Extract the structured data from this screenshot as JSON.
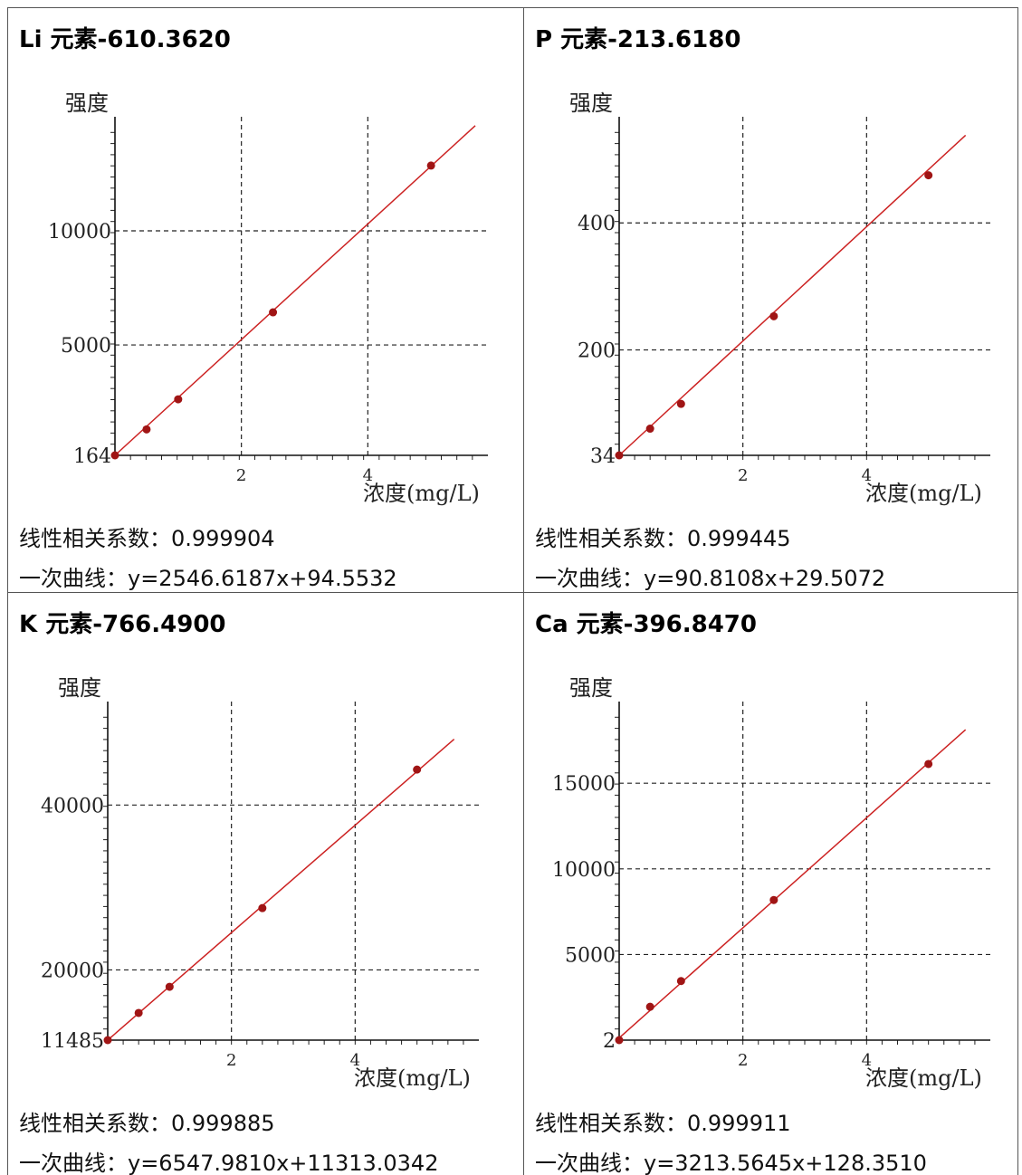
{
  "panels": [
    {
      "title": "Li 元素-610.3620",
      "correlation_label": "线性相关系数：0.999904",
      "curve_label": "一次曲线：y=2546.6187x+94.5532"
    },
    {
      "title": "P 元素-213.6180",
      "correlation_label": "线性相关系数：0.999445",
      "curve_label": "一次曲线：y=90.8108x+29.5072"
    },
    {
      "title": "K 元素-766.4900",
      "correlation_label": "线性相关系数：0.999885",
      "curve_label": "一次曲线：y=6547.9810x+11313.0342"
    },
    {
      "title": "Ca 元素-396.8470",
      "correlation_label": "线性相关系数：0.999911",
      "curve_label": "一次曲线：y=3213.5645x+128.3510"
    }
  ],
  "chart_data": [
    {
      "type": "scatter",
      "title": "Li 元素-610.3620",
      "xlabel": "浓度(mg/L)",
      "ylabel": "强度",
      "xlim": [
        0,
        5.9
      ],
      "ylim": [
        164,
        14800
      ],
      "x_ticks": [
        2,
        4
      ],
      "y_ticks": [
        164,
        5000,
        10000
      ],
      "y_tick_labels": [
        "164",
        "5000",
        "10000"
      ],
      "grid": true,
      "points": [
        [
          0,
          164
        ],
        [
          0.5,
          1300
        ],
        [
          1,
          2620
        ],
        [
          2.5,
          6430
        ],
        [
          5,
          12860
        ]
      ],
      "fit": {
        "slope": 2546.6187,
        "intercept": 94.5532
      },
      "fit_range": [
        0,
        5.7
      ],
      "color": "#cc2222"
    },
    {
      "type": "scatter",
      "title": "P 元素-213.6180",
      "xlabel": "浓度(mg/L)",
      "ylabel": "强度",
      "xlim": [
        0,
        6
      ],
      "ylim": [
        34,
        560
      ],
      "x_ticks": [
        2,
        4
      ],
      "y_ticks": [
        34,
        200,
        400
      ],
      "y_tick_labels": [
        "34",
        "200",
        "400"
      ],
      "grid": true,
      "points": [
        [
          0,
          34
        ],
        [
          0.5,
          76
        ],
        [
          1,
          115
        ],
        [
          2.5,
          253
        ],
        [
          5,
          475
        ]
      ],
      "fit": {
        "slope": 90.8108,
        "intercept": 29.5072
      },
      "fit_range": [
        0,
        5.6
      ],
      "color": "#cc2222"
    },
    {
      "type": "scatter",
      "title": "K 元素-766.4900",
      "xlabel": "浓度(mg/L)",
      "ylabel": "强度",
      "xlim": [
        0,
        6
      ],
      "ylim": [
        11485,
        52000
      ],
      "x_ticks": [
        2,
        4
      ],
      "y_ticks": [
        11485,
        20000,
        40000
      ],
      "y_tick_labels": [
        "11485",
        "20000",
        "40000"
      ],
      "grid": true,
      "points": [
        [
          0,
          11485
        ],
        [
          0.5,
          14780
        ],
        [
          1,
          17950
        ],
        [
          2.5,
          27500
        ],
        [
          5,
          44300
        ]
      ],
      "fit": {
        "slope": 6547.981,
        "intercept": 11313.0342
      },
      "fit_range": [
        0,
        5.6
      ],
      "color": "#cc2222"
    },
    {
      "type": "scatter",
      "title": "Ca 元素-396.8470",
      "xlabel": "浓度(mg/L)",
      "ylabel": "强度",
      "xlim": [
        0,
        6
      ],
      "ylim": [
        2,
        19500
      ],
      "x_ticks": [
        2,
        4
      ],
      "y_ticks": [
        2,
        5000,
        10000,
        15000
      ],
      "y_tick_labels": [
        "2",
        "5000",
        "10000",
        "15000"
      ],
      "grid": true,
      "points": [
        [
          0,
          2
        ],
        [
          0.5,
          1950
        ],
        [
          1,
          3450
        ],
        [
          2.5,
          8180
        ],
        [
          5,
          16120
        ]
      ],
      "fit": {
        "slope": 3213.5645,
        "intercept": 128.351
      },
      "fit_range": [
        0,
        5.6
      ],
      "color": "#cc2222"
    }
  ]
}
